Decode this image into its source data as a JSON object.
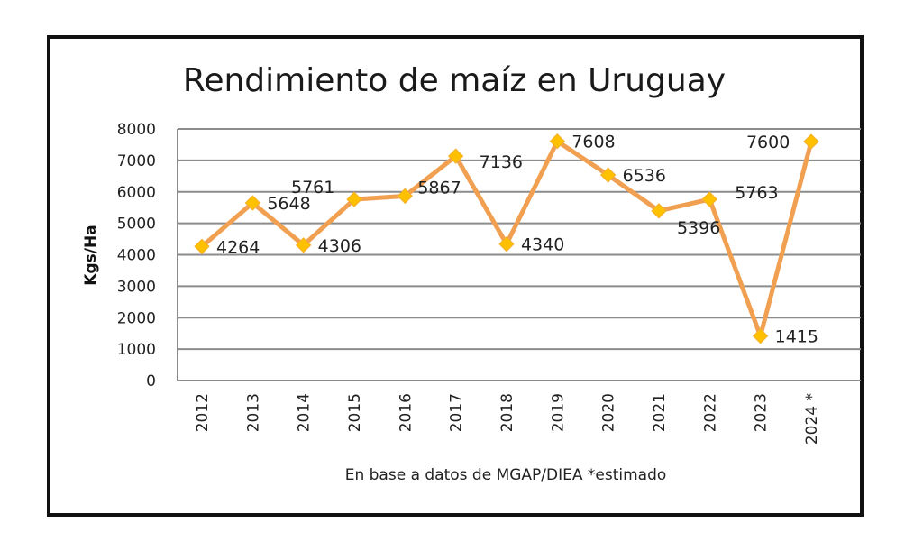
{
  "chart_data": {
    "type": "line",
    "title": "Rendimiento de maíz en Uruguay",
    "xlabel": "En base a datos de MGAP/DIEA *estimado",
    "ylabel": "Kgs/Ha",
    "categories": [
      "2012",
      "2013",
      "2014",
      "2015",
      "2016",
      "2017",
      "2018",
      "2019",
      "2020",
      "2021",
      "2022",
      "2023",
      "2024 *"
    ],
    "series": [
      {
        "name": "Rendimiento",
        "values": [
          4264,
          5648,
          4306,
          5761,
          5867,
          7136,
          4340,
          7608,
          6536,
          5396,
          5763,
          1415,
          7600
        ],
        "labels": [
          "4264",
          "5648",
          "4306",
          "5761",
          "5867",
          "7136",
          "4340",
          "7608",
          "6536",
          "5396",
          "5763",
          "1415",
          "7600"
        ],
        "line_color": "#F0A050",
        "marker_color": "#FFC000",
        "marker": "diamond"
      }
    ],
    "ylim": [
      0,
      8000
    ],
    "yticks": [
      0,
      1000,
      2000,
      3000,
      4000,
      5000,
      6000,
      7000,
      8000
    ],
    "ytick_labels": [
      "0",
      "1000",
      "2000",
      "3000",
      "4000",
      "5000",
      "6000",
      "7000",
      "8000"
    ],
    "grid": true,
    "legend": "none"
  }
}
